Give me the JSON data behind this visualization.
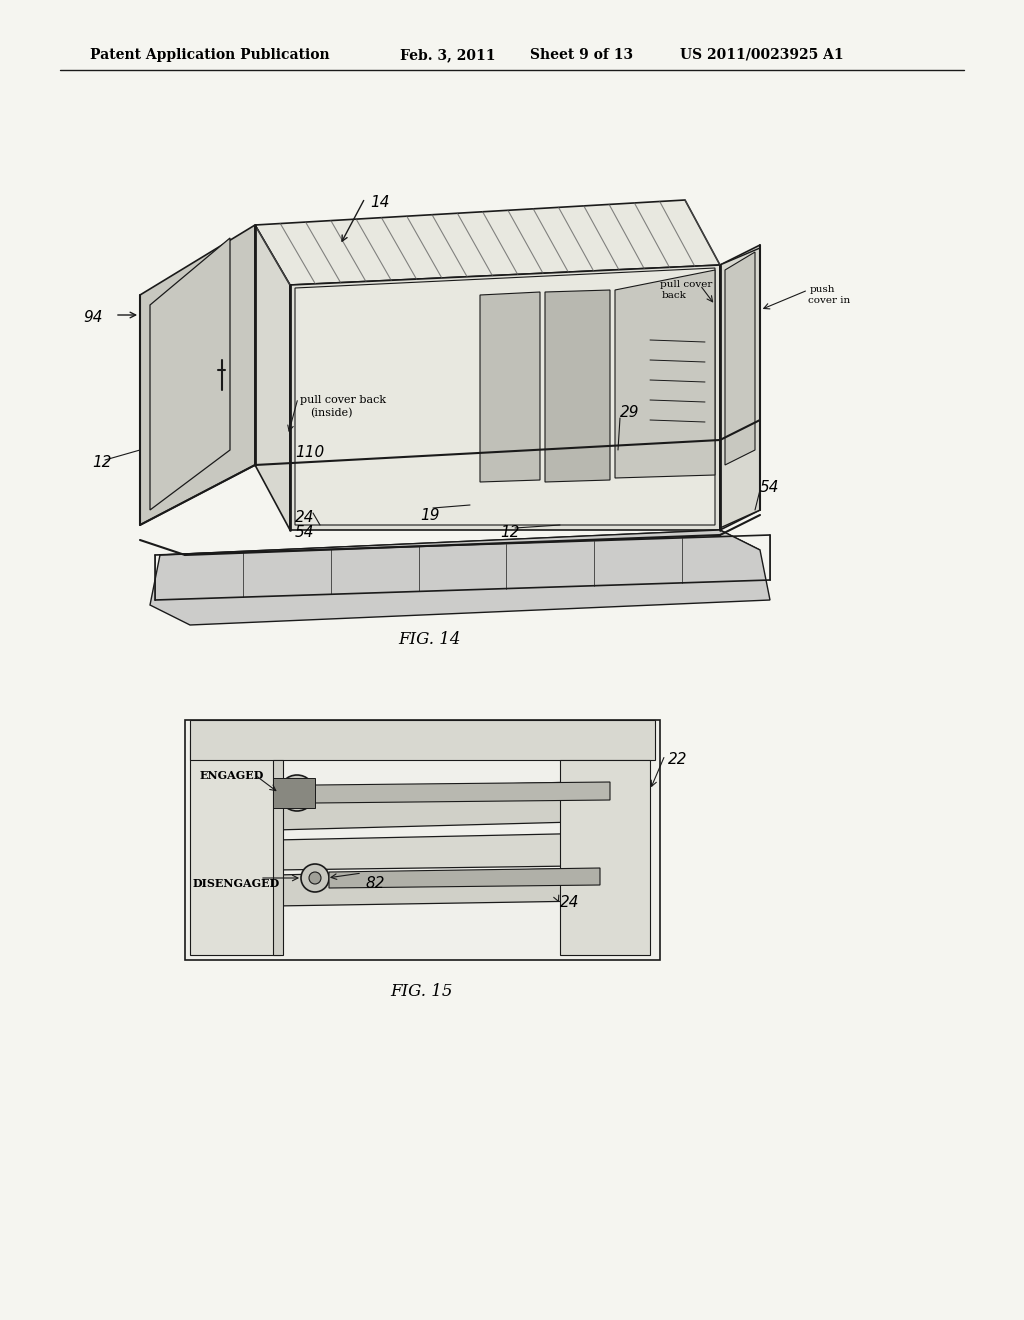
{
  "page_width": 10.24,
  "page_height": 13.2,
  "background_color": "#f5f5f0",
  "header_text": "Patent Application Publication",
  "header_date": "Feb. 3, 2011",
  "header_sheet": "Sheet 9 of 13",
  "header_patent": "US 2011/0023925 A1",
  "fig14_label": "FIG. 14",
  "fig15_label": "FIG. 15",
  "line_color": "#1a1a1a",
  "text_color": "#000000"
}
